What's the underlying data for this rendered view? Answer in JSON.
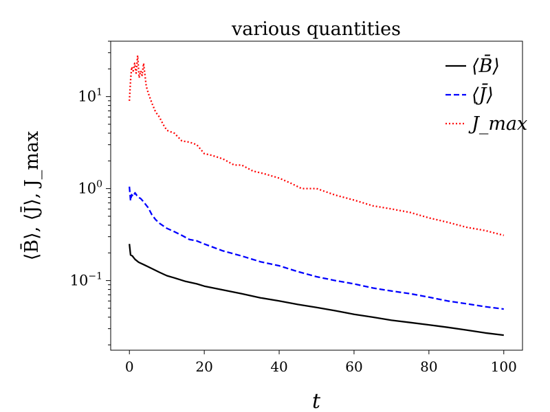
{
  "chart_data": {
    "type": "line",
    "title": "various quantities",
    "xlabel": "t",
    "ylabel": "⟨B̄⟩, ⟨J̄⟩, J_max",
    "xlim": [
      -5,
      105
    ],
    "ylim": [
      0.0175,
      40
    ],
    "yscale": "log",
    "grid": false,
    "legend_position": "top-right",
    "x_ticks": [
      {
        "value": 0,
        "label": "0"
      },
      {
        "value": 20,
        "label": "20"
      },
      {
        "value": 40,
        "label": "40"
      },
      {
        "value": 60,
        "label": "60"
      },
      {
        "value": 80,
        "label": "80"
      },
      {
        "value": 100,
        "label": "100"
      }
    ],
    "y_ticks": [
      {
        "value": 0.1,
        "base": "10",
        "exp": "−1"
      },
      {
        "value": 1,
        "base": "10",
        "exp": "0"
      },
      {
        "value": 10,
        "base": "10",
        "exp": "1"
      }
    ],
    "series": [
      {
        "name": "⟨B̄⟩",
        "color": "#000000",
        "dash": "solid",
        "x": [
          0,
          0.3,
          0.8,
          1.5,
          2.5,
          4,
          6,
          8,
          10,
          12,
          15,
          18,
          20,
          25,
          30,
          35,
          40,
          45,
          50,
          55,
          60,
          65,
          70,
          75,
          80,
          85,
          90,
          95,
          100
        ],
        "y": [
          0.25,
          0.19,
          0.185,
          0.17,
          0.158,
          0.148,
          0.135,
          0.123,
          0.113,
          0.107,
          0.098,
          0.092,
          0.087,
          0.079,
          0.072,
          0.065,
          0.06,
          0.055,
          0.051,
          0.047,
          0.043,
          0.04,
          0.037,
          0.035,
          0.033,
          0.031,
          0.029,
          0.027,
          0.0255
        ]
      },
      {
        "name": "⟨J̄⟩",
        "color": "#0000ff",
        "dash": "dashed",
        "x": [
          0,
          0.3,
          0.6,
          1,
          1.5,
          2,
          2.5,
          3,
          3.5,
          4,
          5,
          6,
          7,
          8,
          10,
          12,
          14,
          16,
          18,
          20,
          25,
          30,
          35,
          40,
          45,
          50,
          55,
          60,
          65,
          70,
          75,
          80,
          85,
          90,
          95,
          100
        ],
        "y": [
          1.05,
          0.74,
          0.86,
          0.82,
          0.9,
          0.84,
          0.8,
          0.78,
          0.74,
          0.7,
          0.62,
          0.52,
          0.46,
          0.42,
          0.37,
          0.34,
          0.31,
          0.28,
          0.27,
          0.25,
          0.21,
          0.185,
          0.16,
          0.145,
          0.125,
          0.11,
          0.1,
          0.092,
          0.083,
          0.077,
          0.072,
          0.066,
          0.06,
          0.056,
          0.052,
          0.049
        ]
      },
      {
        "name": "J_max",
        "color": "#ff0000",
        "dash": "dotted",
        "x": [
          0,
          0.3,
          0.6,
          1,
          1.4,
          1.8,
          2.2,
          2.6,
          3,
          3.4,
          3.8,
          4.5,
          5,
          6,
          7,
          8,
          9,
          10,
          12,
          14,
          16,
          18,
          20,
          22,
          25,
          28,
          30,
          33,
          36,
          40,
          43,
          46,
          50,
          55,
          60,
          65,
          70,
          75,
          80,
          85,
          90,
          95,
          100
        ],
        "y": [
          9,
          15,
          21,
          19,
          23,
          18,
          28,
          16,
          19,
          17,
          23,
          13,
          11,
          8.5,
          6.8,
          6,
          5,
          4.3,
          4,
          3.3,
          3.2,
          3,
          2.4,
          2.3,
          2.1,
          1.8,
          1.8,
          1.55,
          1.45,
          1.3,
          1.15,
          1.0,
          1.0,
          0.85,
          0.75,
          0.65,
          0.6,
          0.55,
          0.48,
          0.43,
          0.38,
          0.35,
          0.31
        ]
      }
    ]
  }
}
